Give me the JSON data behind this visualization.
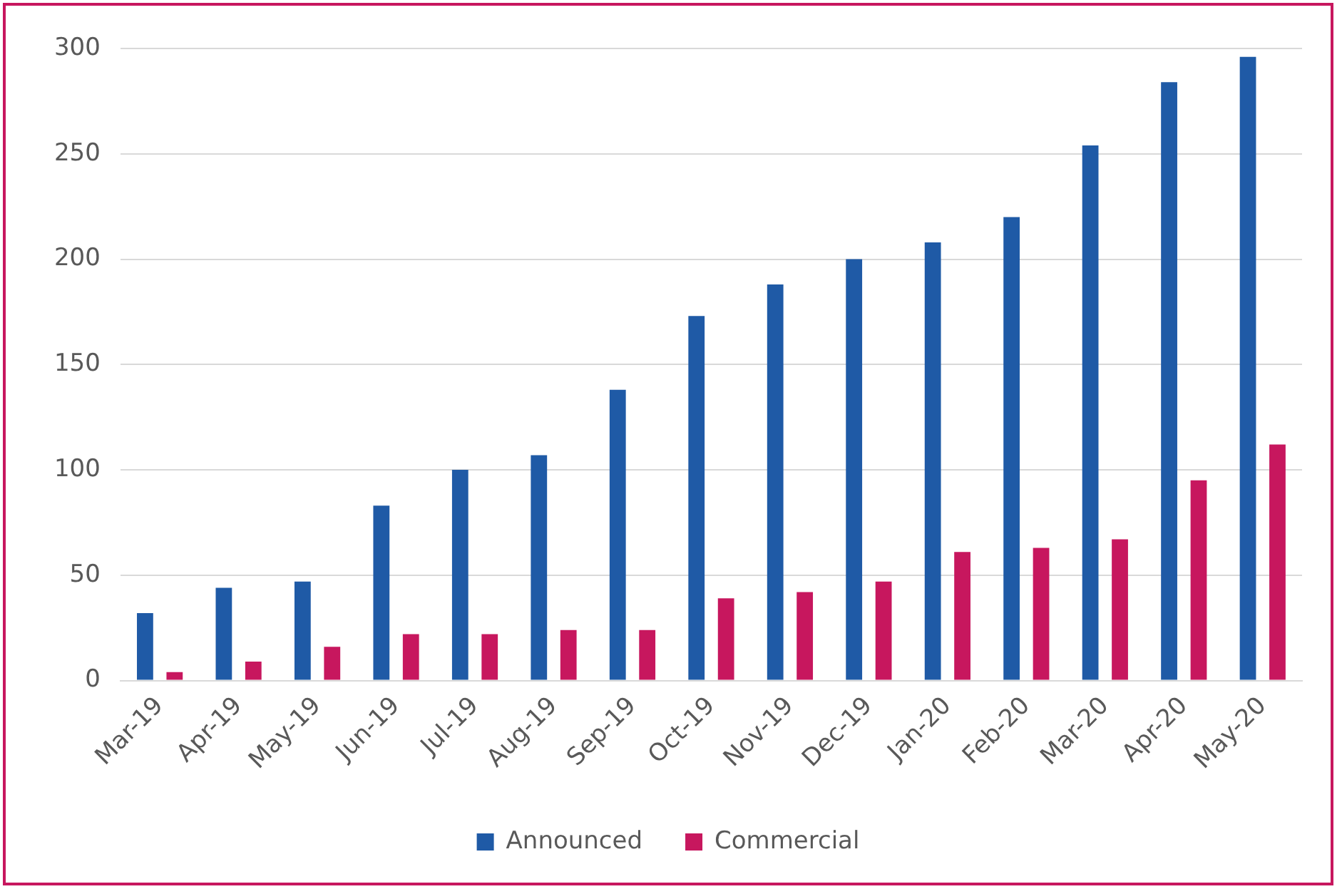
{
  "chart_data": {
    "type": "bar",
    "categories": [
      "Mar-19",
      "Apr-19",
      "May-19",
      "Jun-19",
      "Jul-19",
      "Aug-19",
      "Sep-19",
      "Oct-19",
      "Nov-19",
      "Dec-19",
      "Jan-20",
      "Feb-20",
      "Mar-20",
      "Apr-20",
      "May-20"
    ],
    "series": [
      {
        "name": "Announced",
        "color": "#1f5aa6",
        "values": [
          32,
          44,
          47,
          83,
          100,
          107,
          138,
          173,
          188,
          200,
          208,
          220,
          254,
          284,
          296
        ]
      },
      {
        "name": "Commercial",
        "color": "#c7175e",
        "values": [
          4,
          9,
          16,
          22,
          22,
          24,
          24,
          39,
          42,
          47,
          61,
          63,
          67,
          95,
          112
        ]
      }
    ],
    "ylim": [
      0,
      300
    ],
    "yticks": [
      0,
      50,
      100,
      150,
      200,
      250,
      300
    ],
    "grid": "y",
    "legend": "bottom"
  }
}
